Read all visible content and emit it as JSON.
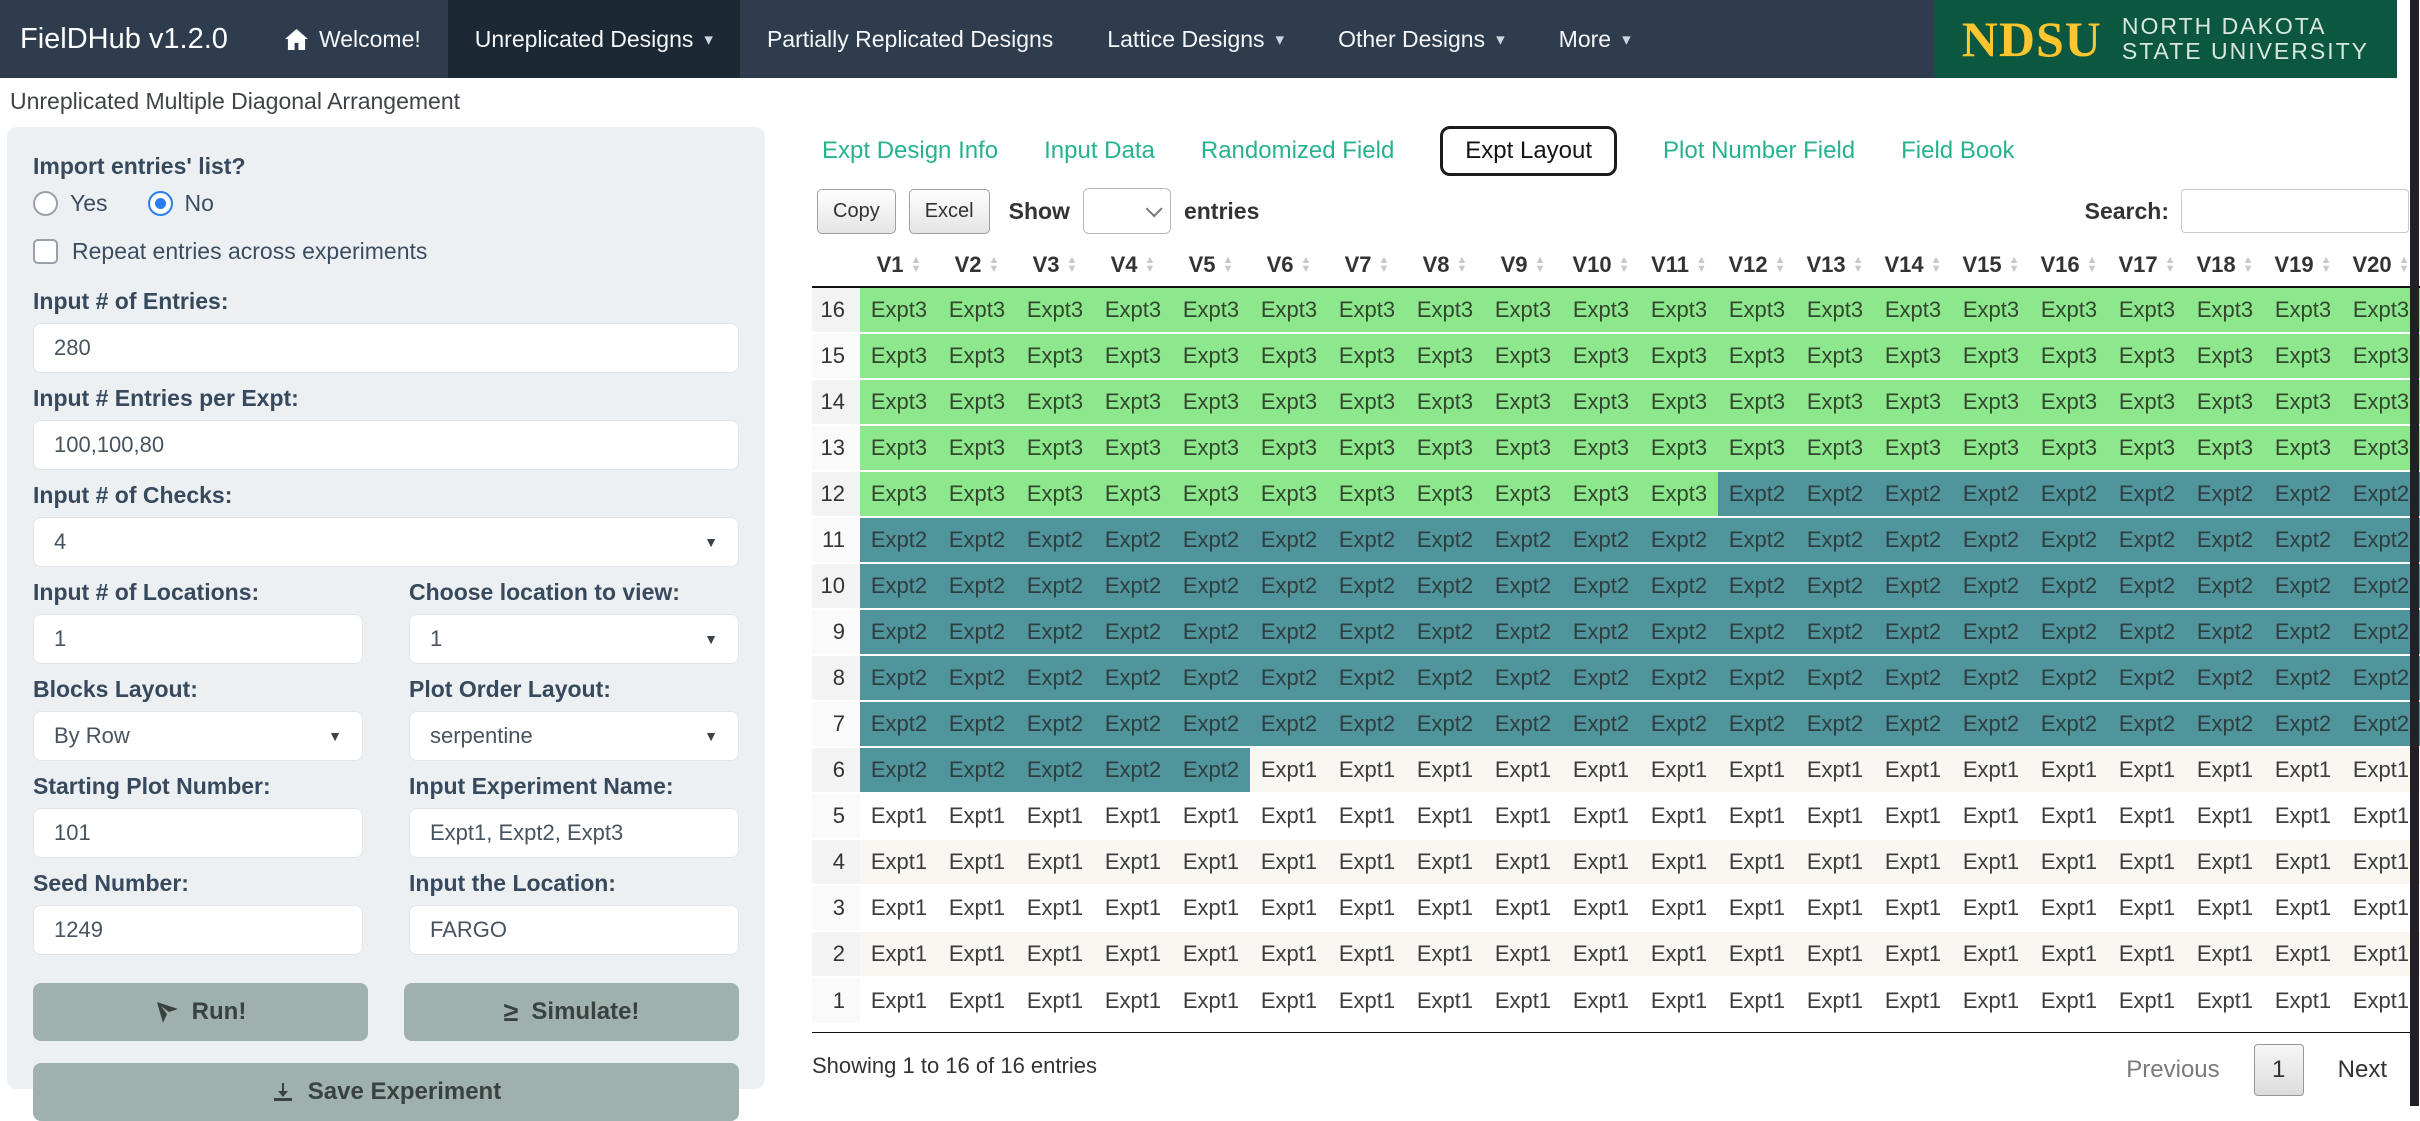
{
  "navbar": {
    "brand": "FielDHub v1.2.0",
    "items": [
      {
        "label": "Welcome!",
        "icon": "home-icon",
        "caret": false,
        "active": false
      },
      {
        "label": "Unreplicated Designs",
        "caret": true,
        "active": true
      },
      {
        "label": "Partially Replicated Designs",
        "caret": false,
        "active": false
      },
      {
        "label": "Lattice Designs",
        "caret": true,
        "active": false
      },
      {
        "label": "Other Designs",
        "caret": true,
        "active": false
      },
      {
        "label": "More",
        "caret": true,
        "active": false
      }
    ],
    "logo": {
      "abbr": "NDSU",
      "line1": "NORTH DAKOTA",
      "line2": "STATE UNIVERSITY"
    }
  },
  "page_title": "Unreplicated Multiple Diagonal Arrangement",
  "sidebar": {
    "import_question": {
      "label": "Import entries' list?",
      "options": [
        "Yes",
        "No"
      ],
      "selected": "No"
    },
    "repeat_checkbox": {
      "label": "Repeat entries across experiments",
      "checked": false
    },
    "fields": {
      "entries": {
        "label": "Input # of Entries:",
        "value": "280",
        "type": "text"
      },
      "entries_per_expt": {
        "label": "Input # Entries per Expt:",
        "value": "100,100,80",
        "type": "text"
      },
      "checks": {
        "label": "Input # of Checks:",
        "value": "4",
        "type": "select"
      },
      "locations": {
        "label": "Input # of Locations:",
        "value": "1",
        "type": "text"
      },
      "location_to_view": {
        "label": "Choose location to view:",
        "value": "1",
        "type": "select"
      },
      "blocks_layout": {
        "label": "Blocks Layout:",
        "value": "By Row",
        "type": "select"
      },
      "plot_order_layout": {
        "label": "Plot Order Layout:",
        "value": "serpentine",
        "type": "select"
      },
      "starting_plot_number": {
        "label": "Starting Plot Number:",
        "value": "101",
        "type": "text"
      },
      "experiment_name": {
        "label": "Input Experiment Name:",
        "value": "Expt1, Expt2, Expt3",
        "type": "text"
      },
      "seed_number": {
        "label": "Seed Number:",
        "value": "1249",
        "type": "text"
      },
      "location": {
        "label": "Input the Location:",
        "value": "FARGO",
        "type": "text"
      }
    },
    "buttons": {
      "run": "Run!",
      "simulate": "Simulate!",
      "save": "Save Experiment"
    }
  },
  "main": {
    "tabs": [
      {
        "label": "Expt Design Info",
        "active": false
      },
      {
        "label": "Input Data",
        "active": false
      },
      {
        "label": "Randomized Field",
        "active": false
      },
      {
        "label": "Expt Layout",
        "active": true
      },
      {
        "label": "Plot Number Field",
        "active": false
      },
      {
        "label": "Field Book",
        "active": false
      }
    ],
    "toolbar": {
      "copy": "Copy",
      "excel": "Excel",
      "show_label": "Show",
      "entries_label": "entries",
      "show_value": "",
      "search_label": "Search:",
      "search_value": ""
    },
    "table": {
      "columns": [
        "V1",
        "V2",
        "V3",
        "V4",
        "V5",
        "V6",
        "V7",
        "V8",
        "V9",
        "V10",
        "V11",
        "V12",
        "V13",
        "V14",
        "V15",
        "V16",
        "V17",
        "V18",
        "V19",
        "V20"
      ],
      "rows": [
        {
          "num": "16",
          "cells": [
            "Expt3",
            "Expt3",
            "Expt3",
            "Expt3",
            "Expt3",
            "Expt3",
            "Expt3",
            "Expt3",
            "Expt3",
            "Expt3",
            "Expt3",
            "Expt3",
            "Expt3",
            "Expt3",
            "Expt3",
            "Expt3",
            "Expt3",
            "Expt3",
            "Expt3",
            "Expt3"
          ]
        },
        {
          "num": "15",
          "cells": [
            "Expt3",
            "Expt3",
            "Expt3",
            "Expt3",
            "Expt3",
            "Expt3",
            "Expt3",
            "Expt3",
            "Expt3",
            "Expt3",
            "Expt3",
            "Expt3",
            "Expt3",
            "Expt3",
            "Expt3",
            "Expt3",
            "Expt3",
            "Expt3",
            "Expt3",
            "Expt3"
          ]
        },
        {
          "num": "14",
          "cells": [
            "Expt3",
            "Expt3",
            "Expt3",
            "Expt3",
            "Expt3",
            "Expt3",
            "Expt3",
            "Expt3",
            "Expt3",
            "Expt3",
            "Expt3",
            "Expt3",
            "Expt3",
            "Expt3",
            "Expt3",
            "Expt3",
            "Expt3",
            "Expt3",
            "Expt3",
            "Expt3"
          ]
        },
        {
          "num": "13",
          "cells": [
            "Expt3",
            "Expt3",
            "Expt3",
            "Expt3",
            "Expt3",
            "Expt3",
            "Expt3",
            "Expt3",
            "Expt3",
            "Expt3",
            "Expt3",
            "Expt3",
            "Expt3",
            "Expt3",
            "Expt3",
            "Expt3",
            "Expt3",
            "Expt3",
            "Expt3",
            "Expt3"
          ]
        },
        {
          "num": "12",
          "cells": [
            "Expt3",
            "Expt3",
            "Expt3",
            "Expt3",
            "Expt3",
            "Expt3",
            "Expt3",
            "Expt3",
            "Expt3",
            "Expt3",
            "Expt3",
            "Expt2",
            "Expt2",
            "Expt2",
            "Expt2",
            "Expt2",
            "Expt2",
            "Expt2",
            "Expt2",
            "Expt2"
          ]
        },
        {
          "num": "11",
          "cells": [
            "Expt2",
            "Expt2",
            "Expt2",
            "Expt2",
            "Expt2",
            "Expt2",
            "Expt2",
            "Expt2",
            "Expt2",
            "Expt2",
            "Expt2",
            "Expt2",
            "Expt2",
            "Expt2",
            "Expt2",
            "Expt2",
            "Expt2",
            "Expt2",
            "Expt2",
            "Expt2"
          ]
        },
        {
          "num": "10",
          "cells": [
            "Expt2",
            "Expt2",
            "Expt2",
            "Expt2",
            "Expt2",
            "Expt2",
            "Expt2",
            "Expt2",
            "Expt2",
            "Expt2",
            "Expt2",
            "Expt2",
            "Expt2",
            "Expt2",
            "Expt2",
            "Expt2",
            "Expt2",
            "Expt2",
            "Expt2",
            "Expt2"
          ]
        },
        {
          "num": "9",
          "cells": [
            "Expt2",
            "Expt2",
            "Expt2",
            "Expt2",
            "Expt2",
            "Expt2",
            "Expt2",
            "Expt2",
            "Expt2",
            "Expt2",
            "Expt2",
            "Expt2",
            "Expt2",
            "Expt2",
            "Expt2",
            "Expt2",
            "Expt2",
            "Expt2",
            "Expt2",
            "Expt2"
          ]
        },
        {
          "num": "8",
          "cells": [
            "Expt2",
            "Expt2",
            "Expt2",
            "Expt2",
            "Expt2",
            "Expt2",
            "Expt2",
            "Expt2",
            "Expt2",
            "Expt2",
            "Expt2",
            "Expt2",
            "Expt2",
            "Expt2",
            "Expt2",
            "Expt2",
            "Expt2",
            "Expt2",
            "Expt2",
            "Expt2"
          ]
        },
        {
          "num": "7",
          "cells": [
            "Expt2",
            "Expt2",
            "Expt2",
            "Expt2",
            "Expt2",
            "Expt2",
            "Expt2",
            "Expt2",
            "Expt2",
            "Expt2",
            "Expt2",
            "Expt2",
            "Expt2",
            "Expt2",
            "Expt2",
            "Expt2",
            "Expt2",
            "Expt2",
            "Expt2",
            "Expt2"
          ]
        },
        {
          "num": "6",
          "cells": [
            "Expt2",
            "Expt2",
            "Expt2",
            "Expt2",
            "Expt2",
            "Expt1",
            "Expt1",
            "Expt1",
            "Expt1",
            "Expt1",
            "Expt1",
            "Expt1",
            "Expt1",
            "Expt1",
            "Expt1",
            "Expt1",
            "Expt1",
            "Expt1",
            "Expt1",
            "Expt1"
          ]
        },
        {
          "num": "5",
          "cells": [
            "Expt1",
            "Expt1",
            "Expt1",
            "Expt1",
            "Expt1",
            "Expt1",
            "Expt1",
            "Expt1",
            "Expt1",
            "Expt1",
            "Expt1",
            "Expt1",
            "Expt1",
            "Expt1",
            "Expt1",
            "Expt1",
            "Expt1",
            "Expt1",
            "Expt1",
            "Expt1"
          ]
        },
        {
          "num": "4",
          "cells": [
            "Expt1",
            "Expt1",
            "Expt1",
            "Expt1",
            "Expt1",
            "Expt1",
            "Expt1",
            "Expt1",
            "Expt1",
            "Expt1",
            "Expt1",
            "Expt1",
            "Expt1",
            "Expt1",
            "Expt1",
            "Expt1",
            "Expt1",
            "Expt1",
            "Expt1",
            "Expt1"
          ]
        },
        {
          "num": "3",
          "cells": [
            "Expt1",
            "Expt1",
            "Expt1",
            "Expt1",
            "Expt1",
            "Expt1",
            "Expt1",
            "Expt1",
            "Expt1",
            "Expt1",
            "Expt1",
            "Expt1",
            "Expt1",
            "Expt1",
            "Expt1",
            "Expt1",
            "Expt1",
            "Expt1",
            "Expt1",
            "Expt1"
          ]
        },
        {
          "num": "2",
          "cells": [
            "Expt1",
            "Expt1",
            "Expt1",
            "Expt1",
            "Expt1",
            "Expt1",
            "Expt1",
            "Expt1",
            "Expt1",
            "Expt1",
            "Expt1",
            "Expt1",
            "Expt1",
            "Expt1",
            "Expt1",
            "Expt1",
            "Expt1",
            "Expt1",
            "Expt1",
            "Expt1"
          ]
        },
        {
          "num": "1",
          "cells": [
            "Expt1",
            "Expt1",
            "Expt1",
            "Expt1",
            "Expt1",
            "Expt1",
            "Expt1",
            "Expt1",
            "Expt1",
            "Expt1",
            "Expt1",
            "Expt1",
            "Expt1",
            "Expt1",
            "Expt1",
            "Expt1",
            "Expt1",
            "Expt1",
            "Expt1",
            "Expt1"
          ]
        }
      ],
      "cell_colors": {
        "Expt1": "#ffffff",
        "Expt2": "#4f959b",
        "Expt3": "#8de88d"
      },
      "cell_text_colors": {
        "Expt1": "#3d3d3d",
        "Expt2": "#2f3e40",
        "Expt3": "#33472f"
      },
      "expt1_stripe": "#faf6f2",
      "rownum_stripe": "#f3f3f3"
    },
    "footer": {
      "showing": "Showing 1 to 16 of 16 entries",
      "previous": "Previous",
      "page": "1",
      "next": "Next"
    }
  },
  "colors": {
    "navbar": "#2e3c4d",
    "navbar_active": "#1d2835",
    "logo_bg": "#0c573f",
    "ndsu_yellow": "#fec62e",
    "tab_teal": "#27b28f",
    "sidebar_bg": "#edf0f2",
    "button_bg": "#9fb1ae",
    "expt3_green": "#8de88d",
    "expt2_teal": "#4f959b"
  }
}
